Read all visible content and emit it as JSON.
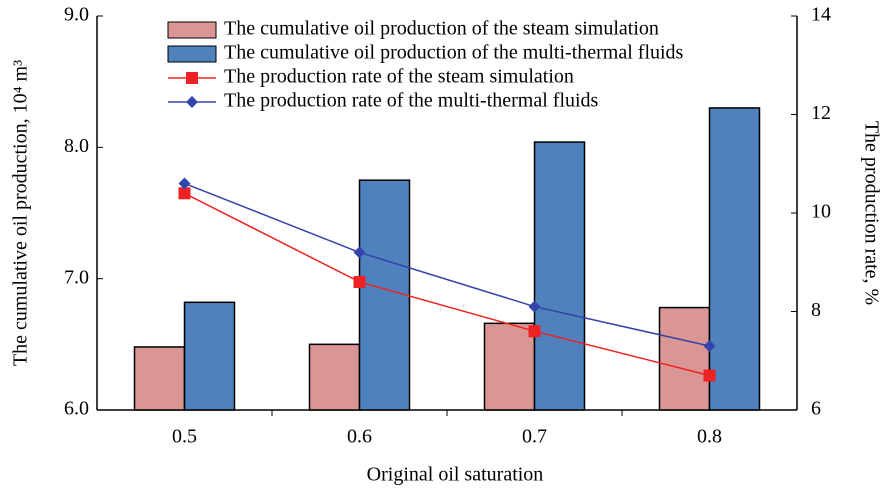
{
  "chart_data": {
    "type": "bar-line",
    "categories": [
      "0.5",
      "0.6",
      "0.7",
      "0.8"
    ],
    "x_label": "Original oil saturation",
    "y_label": "The cumulative oil production, 10⁴ m³",
    "y2_label": "The production rate, %",
    "ylim": [
      6.0,
      9.0
    ],
    "yticks": [
      {
        "value": 6,
        "label": "6.0"
      },
      {
        "value": 7,
        "label": "7.0"
      },
      {
        "value": 8,
        "label": "8.0"
      },
      {
        "value": 9,
        "label": "9.0"
      }
    ],
    "y2lim": [
      6,
      14
    ],
    "y2ticks": [
      6,
      8,
      10,
      12,
      14
    ],
    "legend": "top",
    "series": [
      {
        "name": "The cumulative oil production of the steam simulation",
        "type": "bar",
        "color": "#d99694",
        "values": [
          6.48,
          6.5,
          6.66,
          6.78
        ]
      },
      {
        "name": "The cumulative oil production of the multi-thermal fluids",
        "type": "bar",
        "color": "#4f81bd",
        "values": [
          6.82,
          7.75,
          8.04,
          8.3
        ]
      },
      {
        "name": "The production rate of the steam simulation",
        "type": "line",
        "axis": "y2",
        "marker": "square",
        "color": "#ee2222",
        "values": [
          10.4,
          8.6,
          7.6,
          6.7
        ]
      },
      {
        "name": "The production rate of the multi-thermal fluids",
        "type": "line",
        "axis": "y2",
        "marker": "diamond",
        "color": "#3344aa",
        "values": [
          10.6,
          9.2,
          8.1,
          7.3
        ]
      }
    ]
  }
}
